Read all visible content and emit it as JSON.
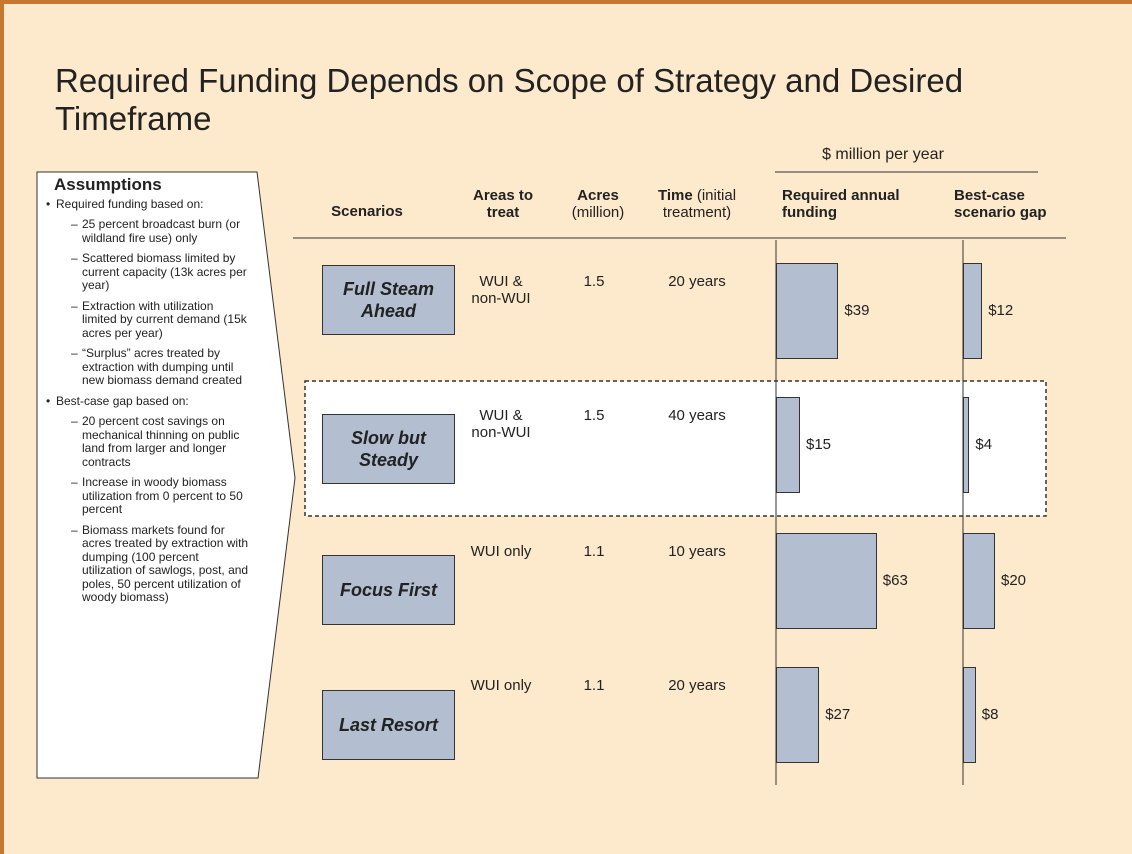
{
  "title": "Required Funding Depends on Scope of Strategy and Desired Timeframe",
  "assumptions": {
    "title": "Assumptions",
    "items": [
      {
        "text": "Required funding based on:",
        "subitems": [
          "25 percent broadcast burn (or wildland fire use) only",
          "Scattered biomass limited by current capacity (13k acres per year)",
          "Extraction with utilization limited by current demand (15k acres per year)",
          "“Surplus” acres treated by extraction with dumping until new biomass demand created"
        ]
      },
      {
        "text": "Best-case gap based on:",
        "subitems": [
          "20 percent cost savings on mechanical thinning on public land from larger and longer contracts",
          "Increase in woody biomass utilization from 0 percent to 50 percent",
          "Biomass markets found for acres treated by extraction with dumping (100 percent utilization of sawlogs, post, and poles, 50 percent utilization of woody biomass)"
        ]
      }
    ]
  },
  "unit_header": "$ million per year",
  "columns": {
    "scenarios": "Scenarios",
    "areas": "Areas to treat",
    "acres_bold": "Acres",
    "acres_rest": "(million)",
    "time_bold": "Time",
    "time_rest": "(initial treatment)",
    "funding": "Required annual funding",
    "gap": "Best-case scenario gap"
  },
  "rows": [
    {
      "scenario": "Full Steam Ahead",
      "areas": "WUI & non-WUI",
      "acres": 1.5,
      "time": "20 years",
      "funding": 39,
      "funding_label": "$39",
      "gap": 12,
      "gap_label": "$12"
    },
    {
      "scenario": "Slow but Steady",
      "areas": "WUI & non-WUI",
      "acres": 1.5,
      "time": "40 years",
      "funding": 15,
      "funding_label": "$15",
      "gap": 4,
      "gap_label": "$4"
    },
    {
      "scenario": "Focus First",
      "areas": "WUI only",
      "acres": 1.1,
      "time": "10 years",
      "funding": 63,
      "funding_label": "$63",
      "gap": 20,
      "gap_label": "$20"
    },
    {
      "scenario": "Last Resort",
      "areas": "WUI only",
      "acres": 1.1,
      "time": "20 years",
      "funding": 27,
      "funding_label": "$27",
      "gap": 8,
      "gap_label": "$8"
    }
  ]
}
